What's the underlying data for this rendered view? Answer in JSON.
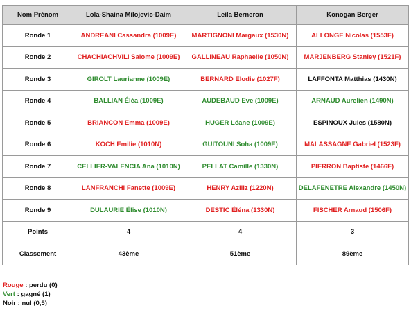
{
  "table": {
    "header": {
      "label": "Nom Prénom",
      "players": [
        "Lola-Shaina Milojevic-Daim",
        "Leila Berneron",
        "Konogan Berger"
      ]
    },
    "rounds": [
      {
        "label": "Ronde 1",
        "results": [
          {
            "text": "ANDREANI Cassandra (1009E)",
            "outcome": "loss"
          },
          {
            "text": "MARTIGNONI Margaux (1530N)",
            "outcome": "loss"
          },
          {
            "text": "ALLONGE Nicolas (1553F)",
            "outcome": "loss"
          }
        ]
      },
      {
        "label": "Ronde 2",
        "results": [
          {
            "text": "CHACHIACHVILI Salome (1009E)",
            "outcome": "loss"
          },
          {
            "text": "GALLINEAU Raphaelle (1050N)",
            "outcome": "loss"
          },
          {
            "text": "MARJENBERG Stanley (1521F)",
            "outcome": "loss"
          }
        ]
      },
      {
        "label": "Ronde 3",
        "results": [
          {
            "text": "GIROLT Laurianne (1009E)",
            "outcome": "win"
          },
          {
            "text": "BERNARD Elodie (1027F)",
            "outcome": "loss"
          },
          {
            "text": "LAFFONTA Matthias (1430N)",
            "outcome": "draw"
          }
        ]
      },
      {
        "label": "Ronde 4",
        "results": [
          {
            "text": "BALLIAN Éléa (1009E)",
            "outcome": "win"
          },
          {
            "text": "AUDEBAUD Eve (1009E)",
            "outcome": "win"
          },
          {
            "text": "ARNAUD Aurelien (1490N)",
            "outcome": "win"
          }
        ]
      },
      {
        "label": "Ronde 5",
        "results": [
          {
            "text": "BRIANCON Emma (1009E)",
            "outcome": "loss"
          },
          {
            "text": "HUGER Léane (1009E)",
            "outcome": "win"
          },
          {
            "text": "ESPINOUX Jules (1580N)",
            "outcome": "draw"
          }
        ]
      },
      {
        "label": "Ronde 6",
        "results": [
          {
            "text": "KOCH Emilie (1010N)",
            "outcome": "loss"
          },
          {
            "text": "GUITOUNI Soha (1009E)",
            "outcome": "win"
          },
          {
            "text": "MALASSAGNE Gabriel (1523F)",
            "outcome": "loss"
          }
        ]
      },
      {
        "label": "Ronde 7",
        "results": [
          {
            "text": "CELLIER-VALENCIA Ana (1010N)",
            "outcome": "win"
          },
          {
            "text": "PELLAT Camille (1330N)",
            "outcome": "win"
          },
          {
            "text": "PIERRON Baptiste (1466F)",
            "outcome": "loss"
          }
        ]
      },
      {
        "label": "Ronde 8",
        "results": [
          {
            "text": "LANFRANCHI Fanette (1009E)",
            "outcome": "loss"
          },
          {
            "text": "HENRY Aziliz (1220N)",
            "outcome": "loss"
          },
          {
            "text": "DELAFENETRE Alexandre (1450N)",
            "outcome": "win"
          }
        ]
      },
      {
        "label": "Ronde 9",
        "results": [
          {
            "text": "DULAURIE Élise (1010N)",
            "outcome": "win"
          },
          {
            "text": "DESTIC Éléna (1330N)",
            "outcome": "loss"
          },
          {
            "text": "FISCHER Arnaud (1506F)",
            "outcome": "loss"
          }
        ]
      }
    ],
    "points": {
      "label": "Points",
      "values": [
        "4",
        "4",
        "3"
      ]
    },
    "ranking": {
      "label": "Classement",
      "values": [
        "43ème",
        "51ème",
        "89ème"
      ]
    }
  },
  "legend": {
    "red": {
      "word": "Rouge",
      "rest": " : perdu (0)"
    },
    "green": {
      "word": "Vert",
      "rest": " : gagné (1)"
    },
    "black": {
      "word": "Noir",
      "rest": " : nul (0,5)"
    }
  },
  "colors": {
    "loss": "#e02020",
    "win": "#2e8b2e",
    "draw": "#111111",
    "header_bg": "#d9d9d9"
  }
}
